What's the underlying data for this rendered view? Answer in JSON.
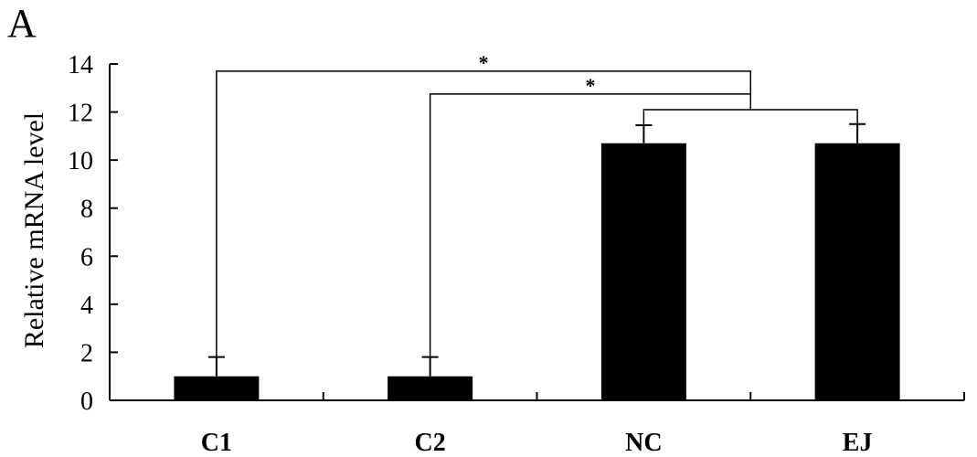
{
  "panel_label": "A",
  "chart_data": {
    "type": "bar",
    "categories": [
      "C1",
      "C2",
      "NC",
      "EJ"
    ],
    "values": [
      1.0,
      1.0,
      10.7,
      10.7
    ],
    "errors": [
      0.8,
      0.8,
      0.75,
      0.8
    ],
    "title": "",
    "xlabel": "",
    "ylabel": "Relative mRNA level",
    "ylim": [
      0,
      14
    ],
    "yticks": [
      0,
      2,
      4,
      6,
      8,
      10,
      12,
      14
    ],
    "grid": false,
    "legend": "none",
    "bar_color": "#000000",
    "significance": [
      {
        "from": "C1",
        "to": "NC/EJ",
        "label": "*"
      },
      {
        "from": "C2",
        "to": "NC/EJ",
        "label": "*"
      }
    ]
  }
}
